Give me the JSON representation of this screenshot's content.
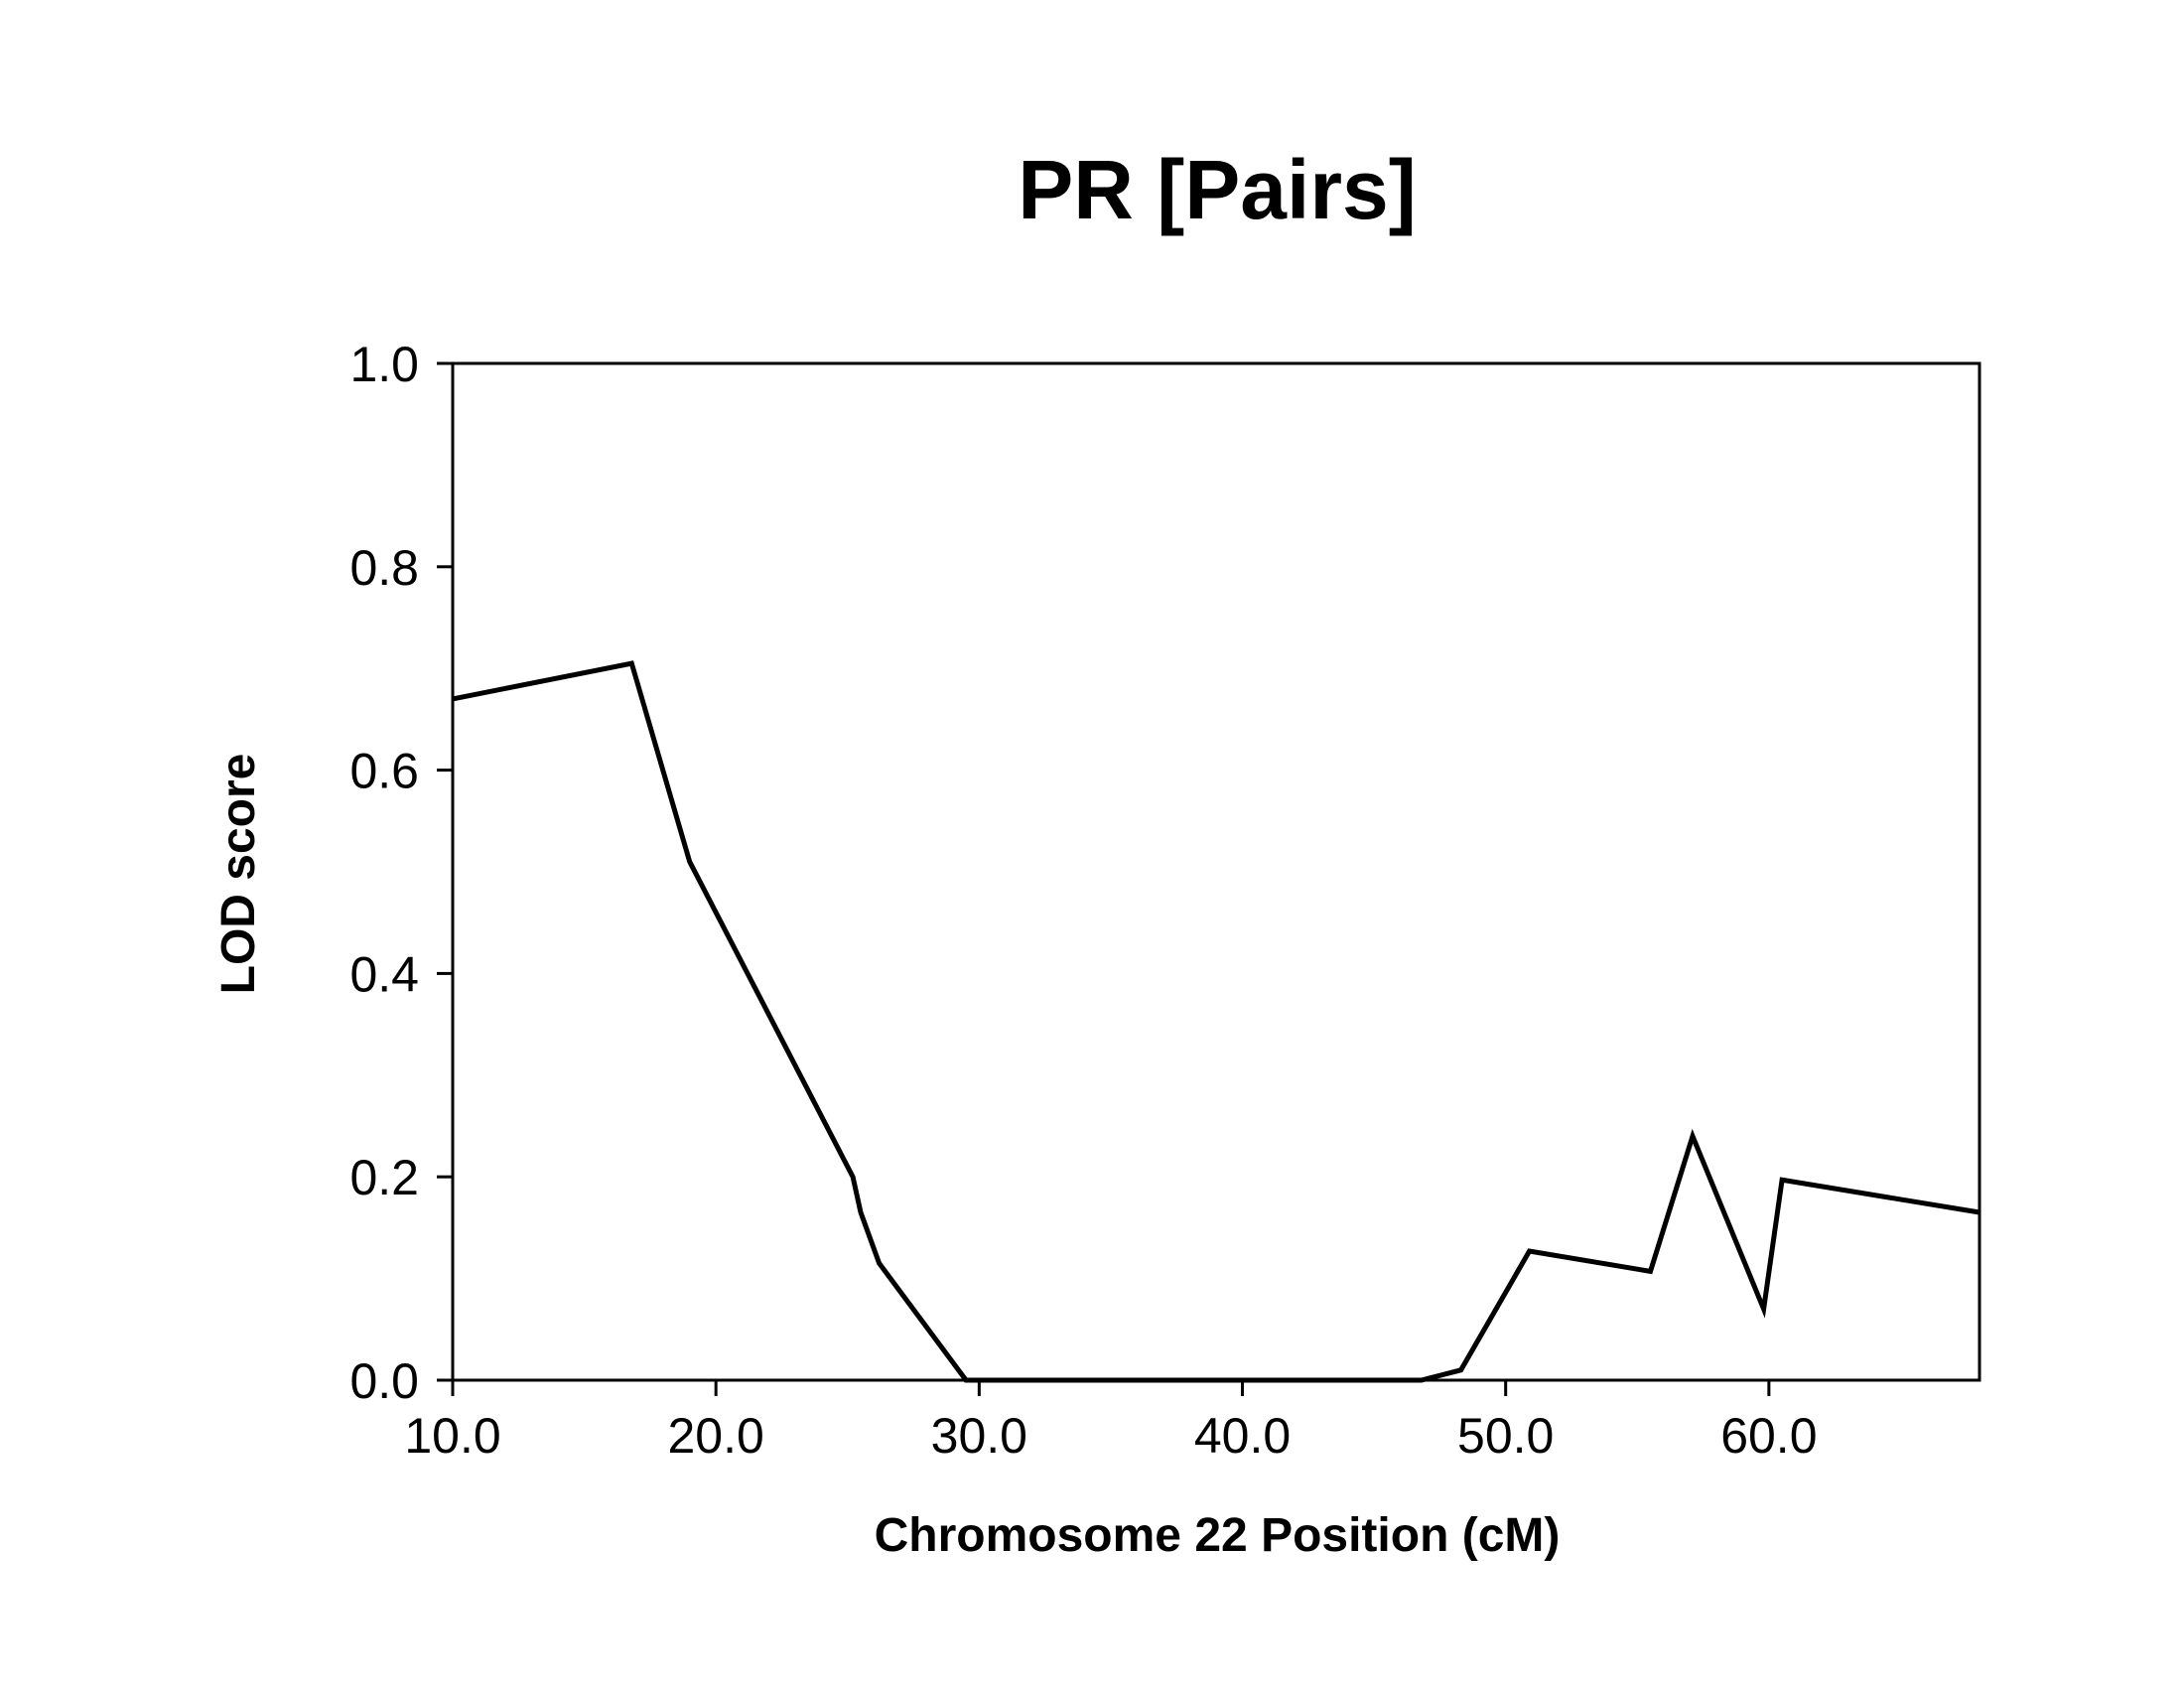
{
  "chart_data": {
    "type": "line",
    "title": "PR [Pairs]",
    "xlabel": "Chromosome 22 Position (cM)",
    "ylabel": "LOD score",
    "xlim": [
      10.0,
      68.0
    ],
    "ylim": [
      0.0,
      1.0
    ],
    "x_ticks": [
      10.0,
      20.0,
      30.0,
      40.0,
      50.0,
      60.0
    ],
    "x_tick_labels": [
      "10.0",
      "20.0",
      "30.0",
      "40.0",
      "50.0",
      "60.0"
    ],
    "y_ticks": [
      0.0,
      0.2,
      0.4,
      0.6,
      0.8,
      1.0
    ],
    "y_tick_labels": [
      "0.0",
      "0.2",
      "0.4",
      "0.6",
      "0.8",
      "1.0"
    ],
    "grid": false,
    "line_color": "#000000",
    "series": [
      {
        "x": [
          10.0,
          16.8,
          19.0,
          25.2,
          25.5,
          26.2,
          29.5,
          30.8,
          46.0,
          46.8,
          48.3,
          50.9,
          55.5,
          57.1,
          59.8,
          60.5,
          68.0
        ],
        "y": [
          0.67,
          0.705,
          0.51,
          0.2,
          0.165,
          0.115,
          0.0,
          0.0,
          0.0,
          0.0,
          0.01,
          0.127,
          0.107,
          0.24,
          0.07,
          0.197,
          0.165
        ]
      }
    ]
  }
}
